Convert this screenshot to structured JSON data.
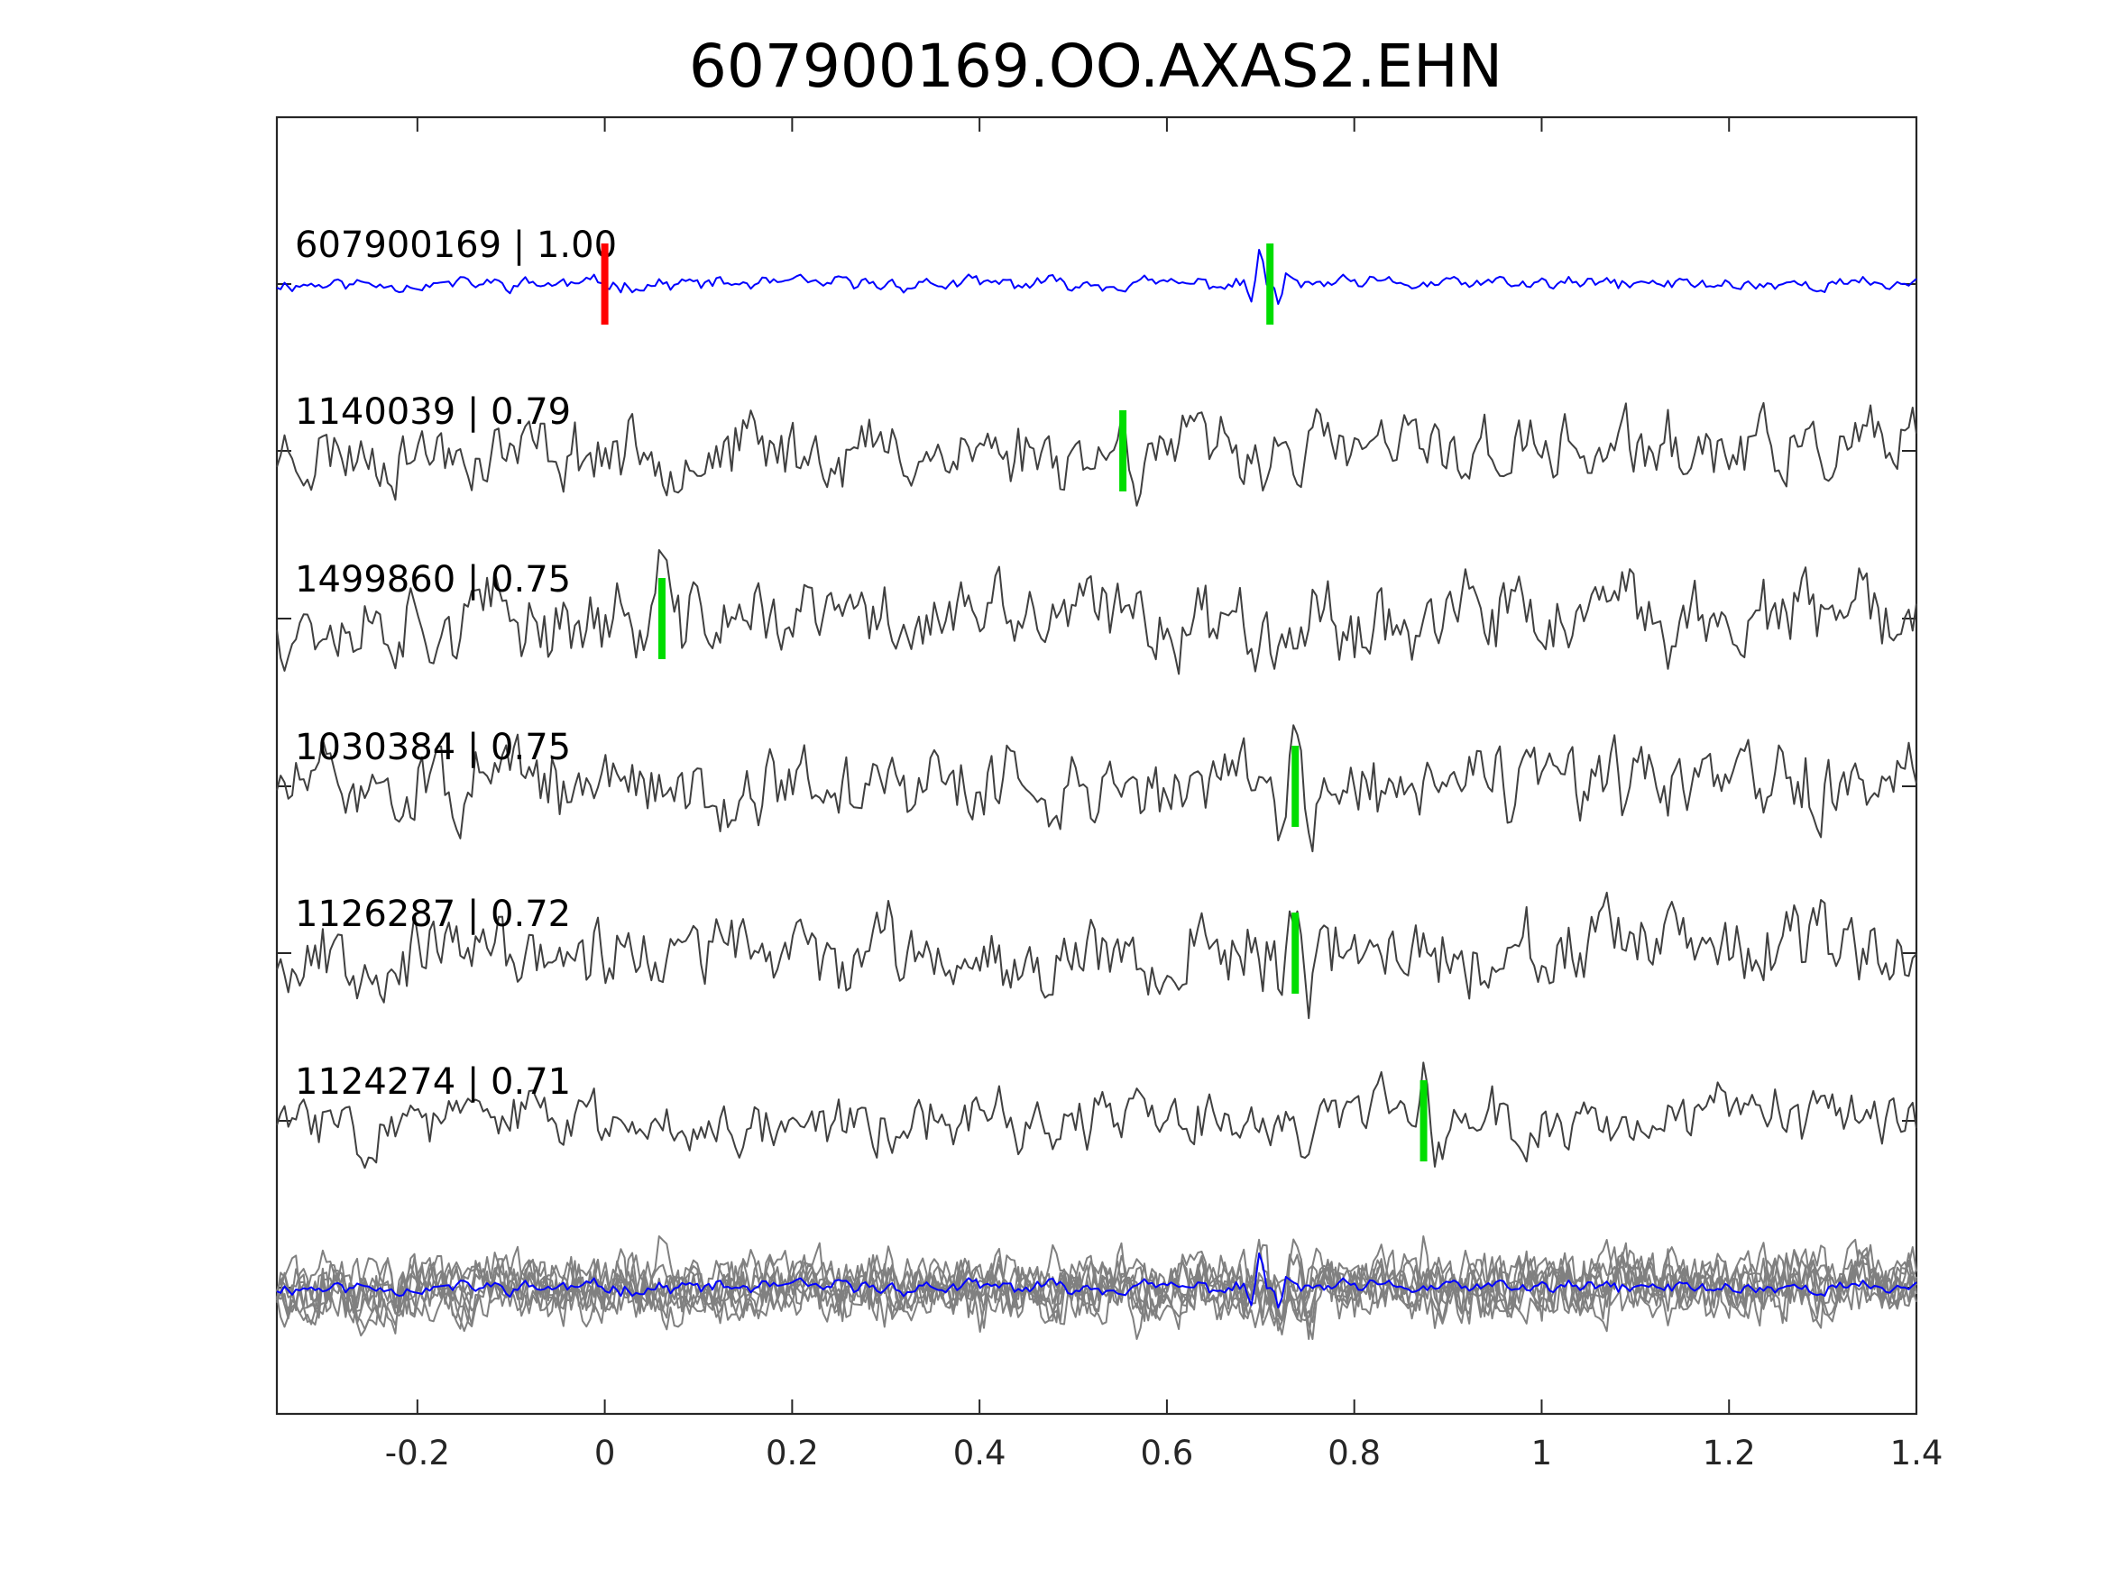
{
  "chart_data": {
    "type": "line",
    "title": "607900169.OO.AXAS2.EHN",
    "xlabel": "",
    "ylabel": "",
    "xlim": [
      -0.35,
      1.4
    ],
    "xticks": [
      -0.2,
      0,
      0.2,
      0.4,
      0.6,
      0.8,
      1,
      1.2,
      1.4
    ],
    "xtick_labels": [
      "-0.2",
      "0",
      "0.2",
      "0.4",
      "0.6",
      "0.8",
      "1",
      "1.2",
      "1.4"
    ],
    "grid": false,
    "legend": "none",
    "colors": {
      "reference": "#0000ff",
      "neighbor": "#404040",
      "stack": "#808080",
      "pick_reference": "#ff0000",
      "pick_neighbor": "#00dd00",
      "axes": "#262626"
    },
    "series": [
      {
        "label": "607900169 | 1.00",
        "pick_time": 0.0,
        "s_pick_time": 0.71,
        "role": "reference"
      },
      {
        "label": "1140039 | 0.79",
        "pick_time": 0.553,
        "role": "neighbor"
      },
      {
        "label": "1499860 | 0.75",
        "pick_time": 0.061,
        "role": "neighbor"
      },
      {
        "label": "1030384 | 0.75",
        "pick_time": 0.737,
        "role": "neighbor"
      },
      {
        "label": "1126287 | 0.72",
        "pick_time": 0.737,
        "role": "neighbor"
      },
      {
        "label": "1124274 | 0.71",
        "pick_time": 0.874,
        "role": "neighbor"
      }
    ],
    "stack": {
      "role": "overlay",
      "description_visible": false
    }
  }
}
